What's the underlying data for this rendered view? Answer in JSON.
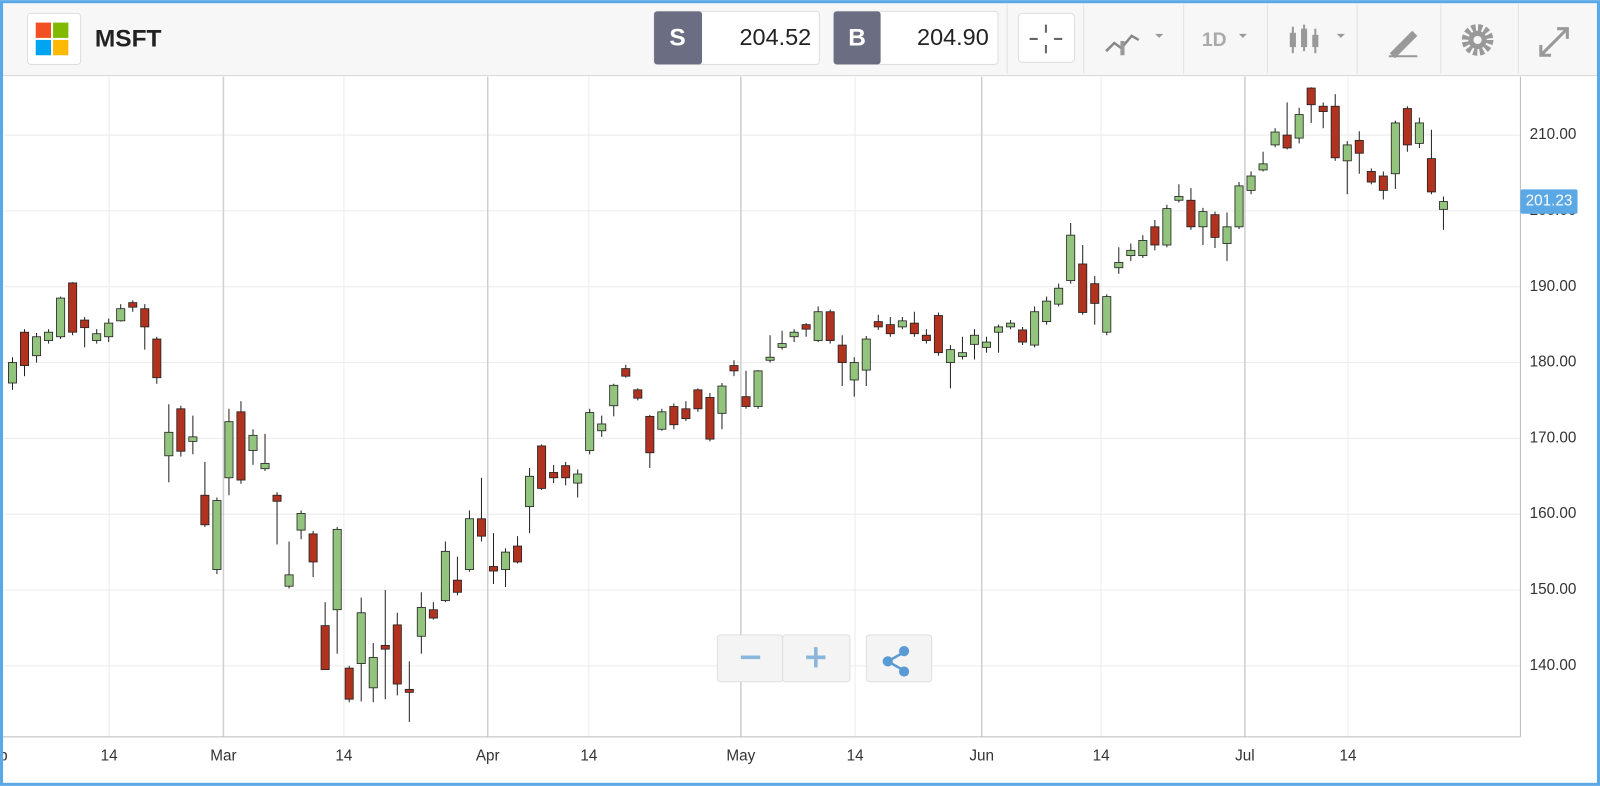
{
  "toolbar": {
    "symbol": "MSFT",
    "sell_label": "S",
    "sell_price": "204.52",
    "buy_label": "B",
    "buy_price": "204.90",
    "interval": "1D"
  },
  "chart_data": {
    "type": "candlestick",
    "up_color": "#93c47d",
    "down_color": "#b0321f",
    "grid": true,
    "x": [
      0,
      1,
      2,
      3,
      4,
      5,
      6,
      7,
      8,
      9,
      10,
      11,
      12,
      13,
      14,
      15,
      16,
      17,
      18,
      19,
      20,
      21,
      22,
      23,
      24,
      25,
      26,
      27,
      28,
      29,
      30,
      31,
      32,
      33,
      34,
      35,
      36,
      37,
      38,
      39,
      40,
      41,
      42,
      43,
      44,
      45,
      46,
      47,
      48,
      49,
      50,
      51,
      52,
      53,
      54,
      55,
      56,
      57,
      58,
      59,
      60,
      61,
      62,
      63,
      64,
      65,
      66,
      67,
      68,
      69,
      70,
      71,
      72,
      73,
      74,
      75,
      76,
      77,
      78,
      79,
      80,
      81,
      82,
      83,
      84,
      85,
      86,
      87,
      88,
      89,
      90,
      91,
      92,
      93,
      94,
      95,
      96,
      97,
      98,
      99,
      100,
      101,
      102,
      103,
      104,
      105,
      106,
      107,
      108,
      109,
      110,
      111,
      112,
      113,
      114,
      115,
      116,
      117,
      118,
      119
    ],
    "open": [
      177.3,
      184.0,
      180.9,
      182.9,
      183.4,
      190.5,
      185.6,
      182.9,
      183.4,
      185.5,
      187.9,
      187.1,
      183.1,
      167.7,
      173.9,
      169.6,
      162.5,
      152.7,
      164.8,
      173.5,
      168.4,
      166.0,
      162.5,
      150.5,
      157.9,
      157.4,
      145.3,
      147.4,
      139.7,
      140.3,
      137.1,
      142.7,
      145.4,
      136.9,
      143.9,
      147.4,
      148.6,
      151.3,
      152.7,
      159.4,
      153.1,
      152.7,
      155.8,
      161.0,
      169.0,
      165.5,
      166.4,
      164.1,
      168.4,
      171.0,
      174.3,
      179.2,
      176.4,
      172.9,
      171.2,
      174.2,
      173.9,
      176.4,
      175.4,
      173.3,
      179.6,
      175.5,
      174.2,
      180.3,
      182.0,
      183.4,
      185.0,
      182.9,
      186.7,
      182.3,
      177.7,
      179.0,
      185.4,
      185.0,
      184.7,
      185.2,
      183.6,
      186.2,
      180.0,
      180.8,
      182.4,
      182.0,
      184.0,
      184.7,
      184.3,
      182.3,
      185.4,
      187.7,
      190.8,
      193.0,
      190.4,
      184.0,
      192.5,
      194.1,
      194.1,
      197.9,
      195.5,
      201.4,
      201.4,
      197.9,
      199.5,
      195.7,
      197.9,
      202.7,
      205.4,
      208.7,
      210.0,
      209.6,
      216.2,
      213.8,
      213.8,
      206.6,
      209.3,
      205.2,
      204.6,
      204.9,
      213.5,
      208.9,
      206.9,
      200.2
    ],
    "high": [
      180.7,
      184.4,
      183.9,
      184.4,
      188.7,
      190.6,
      186.0,
      184.4,
      185.8,
      187.7,
      188.2,
      187.7,
      183.4,
      174.5,
      174.3,
      173.0,
      166.9,
      162.2,
      173.9,
      174.9,
      171.2,
      170.6,
      162.9,
      156.4,
      160.5,
      157.8,
      148.4,
      158.3,
      140.0,
      149.0,
      143.0,
      150.0,
      147.0,
      140.6,
      149.7,
      148.4,
      156.4,
      154.4,
      160.5,
      164.8,
      157.5,
      155.5,
      157.1,
      166.1,
      169.2,
      166.5,
      166.9,
      165.9,
      173.9,
      173.0,
      177.2,
      179.7,
      176.6,
      173.1,
      173.9,
      174.6,
      174.9,
      176.6,
      176.0,
      177.3,
      180.3,
      178.9,
      179.0,
      183.6,
      184.2,
      184.4,
      185.2,
      187.4,
      187.0,
      183.6,
      180.7,
      183.5,
      186.3,
      186.0,
      186.0,
      186.7,
      184.4,
      186.6,
      182.3,
      183.4,
      184.4,
      183.4,
      185.0,
      185.6,
      184.7,
      187.4,
      188.7,
      190.4,
      198.4,
      195.5,
      191.4,
      189.0,
      195.2,
      195.7,
      196.8,
      198.8,
      200.8,
      203.5,
      203.0,
      200.4,
      199.9,
      199.8,
      203.8,
      205.2,
      207.8,
      210.9,
      214.3,
      213.6,
      216.3,
      214.3,
      215.4,
      209.2,
      210.5,
      205.6,
      205.2,
      211.9,
      213.8,
      212.3,
      210.7,
      201.9
    ],
    "low": [
      176.4,
      178.2,
      180.0,
      182.5,
      183.1,
      183.6,
      182.0,
      182.5,
      182.7,
      185.4,
      186.7,
      181.7,
      177.2,
      164.2,
      167.6,
      167.9,
      158.3,
      152.1,
      162.5,
      164.0,
      166.5,
      165.7,
      156.0,
      150.2,
      156.7,
      151.7,
      139.5,
      141.6,
      135.2,
      135.3,
      135.2,
      135.6,
      136.1,
      132.6,
      141.6,
      146.1,
      148.4,
      149.3,
      152.4,
      156.4,
      150.8,
      150.4,
      153.5,
      157.5,
      163.2,
      164.1,
      163.8,
      162.2,
      167.9,
      170.2,
      172.9,
      178.0,
      175.0,
      166.1,
      171.0,
      171.2,
      172.3,
      173.5,
      169.6,
      171.2,
      178.2,
      173.9,
      173.9,
      180.0,
      181.7,
      182.7,
      183.4,
      182.7,
      182.5,
      176.9,
      175.5,
      176.9,
      184.3,
      183.4,
      184.4,
      183.4,
      182.5,
      180.9,
      176.6,
      180.4,
      180.4,
      181.3,
      181.3,
      184.4,
      182.3,
      182.0,
      185.0,
      187.4,
      190.4,
      186.3,
      185.0,
      183.6,
      191.7,
      193.4,
      193.8,
      194.8,
      195.2,
      201.1,
      197.5,
      195.5,
      195.1,
      193.4,
      197.6,
      202.2,
      205.2,
      208.4,
      208.1,
      208.9,
      211.6,
      210.9,
      206.6,
      202.2,
      204.9,
      203.5,
      201.5,
      202.9,
      207.8,
      208.3,
      202.2,
      197.5
    ],
    "close": [
      180.0,
      179.6,
      183.4,
      184.0,
      188.5,
      184.0,
      184.6,
      183.8,
      185.2,
      187.1,
      187.3,
      184.7,
      178.0,
      170.8,
      168.3,
      170.2,
      158.6,
      161.8,
      172.2,
      164.5,
      170.4,
      166.7,
      161.7,
      152.0,
      160.1,
      153.7,
      139.5,
      158.0,
      135.6,
      147.0,
      141.1,
      142.2,
      137.6,
      136.5,
      147.7,
      146.3,
      155.1,
      149.7,
      159.4,
      157.1,
      152.5,
      155.0,
      153.7,
      165.0,
      163.4,
      164.8,
      164.8,
      165.3,
      173.4,
      171.9,
      177.0,
      178.2,
      175.3,
      168.1,
      173.5,
      171.8,
      172.6,
      173.9,
      169.9,
      176.9,
      178.9,
      174.2,
      178.9,
      180.7,
      182.5,
      184.0,
      184.4,
      186.7,
      182.9,
      180.0,
      180.0,
      183.1,
      184.7,
      183.8,
      185.5,
      183.8,
      182.9,
      181.3,
      181.7,
      181.3,
      183.6,
      182.7,
      184.7,
      185.2,
      182.7,
      186.7,
      188.1,
      189.8,
      196.8,
      186.6,
      187.8,
      188.7,
      193.2,
      194.8,
      196.1,
      195.5,
      200.3,
      201.9,
      197.9,
      199.9,
      196.5,
      197.9,
      203.3,
      204.6,
      206.2,
      210.4,
      208.3,
      212.7,
      214.0,
      213.1,
      207.0,
      208.7,
      207.6,
      203.8,
      202.7,
      211.6,
      208.7,
      211.6,
      202.5,
      201.23
    ],
    "xlim": [
      -0.7,
      125.4
    ],
    "xticks": [
      {
        "value": -1.5,
        "label": "Feb"
      },
      {
        "value": 8.04,
        "label": "14"
      },
      {
        "value": 17.54,
        "label": "Mar"
      },
      {
        "value": 27.56,
        "label": "14"
      },
      {
        "value": 39.52,
        "label": "Apr"
      },
      {
        "value": 47.93,
        "label": "14"
      },
      {
        "value": 60.57,
        "label": "May"
      },
      {
        "value": 70.07,
        "label": "14"
      },
      {
        "value": 80.6,
        "label": "Jun"
      },
      {
        "value": 90.53,
        "label": "14"
      },
      {
        "value": 102.49,
        "label": "Jul"
      },
      {
        "value": 111.06,
        "label": "14"
      }
    ],
    "ylim": [
      130.9,
      217.7
    ],
    "yticks": [
      {
        "value": 140,
        "label": "140.00"
      },
      {
        "value": 150,
        "label": "150.00"
      },
      {
        "value": 160,
        "label": "160.00"
      },
      {
        "value": 170,
        "label": "170.00"
      },
      {
        "value": 180,
        "label": "180.00"
      },
      {
        "value": 190,
        "label": "190.00"
      },
      {
        "value": 200,
        "label": "200.00"
      },
      {
        "value": 210,
        "label": "210.00"
      }
    ]
  }
}
